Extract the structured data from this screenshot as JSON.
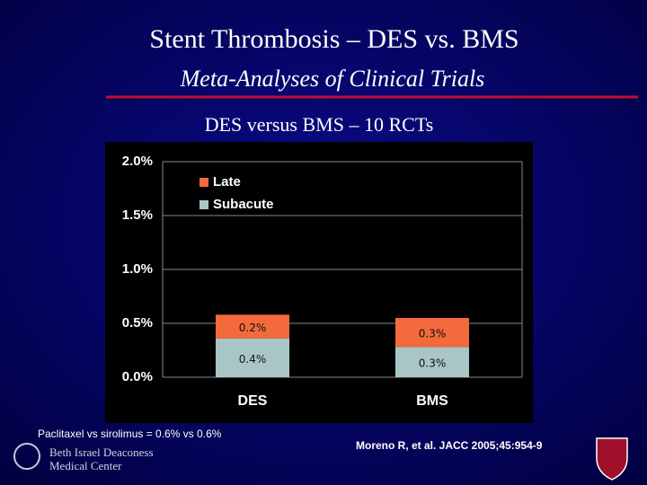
{
  "slide": {
    "title": "Stent Thrombosis – DES vs. BMS",
    "subtitle": "Meta-Analyses of Clinical Trials",
    "footnote": "Paclitaxel vs sirolimus = 0.6% vs 0.6%",
    "citation": "Moreno R, et al. JACC 2005;45:954-9",
    "logo_lines": [
      "Beth Israel Deaconess",
      "Medical Center"
    ]
  },
  "chart_data": {
    "type": "stacked-bar",
    "title": "DES versus BMS – 10 RCTs",
    "categories": [
      "DES",
      "BMS"
    ],
    "series": [
      {
        "name": "Subacute",
        "color": "#a9c6c6",
        "values": [
          0.36,
          0.28
        ],
        "value_labels": [
          "0.4%",
          "0.3%"
        ]
      },
      {
        "name": "Late",
        "color": "#f36a3c",
        "values": [
          0.22,
          0.27
        ],
        "value_labels": [
          "0.2%",
          "0.3%"
        ]
      }
    ],
    "ylim": [
      0,
      2
    ],
    "yticks": [
      {
        "value": 0,
        "label": "0.0%"
      },
      {
        "value": 0.5,
        "label": "0.5%"
      },
      {
        "value": 1,
        "label": "1.0%"
      },
      {
        "value": 1.5,
        "label": "1.5%"
      },
      {
        "value": 2,
        "label": "2.0%"
      }
    ],
    "grid": true,
    "legend": "top-left"
  }
}
